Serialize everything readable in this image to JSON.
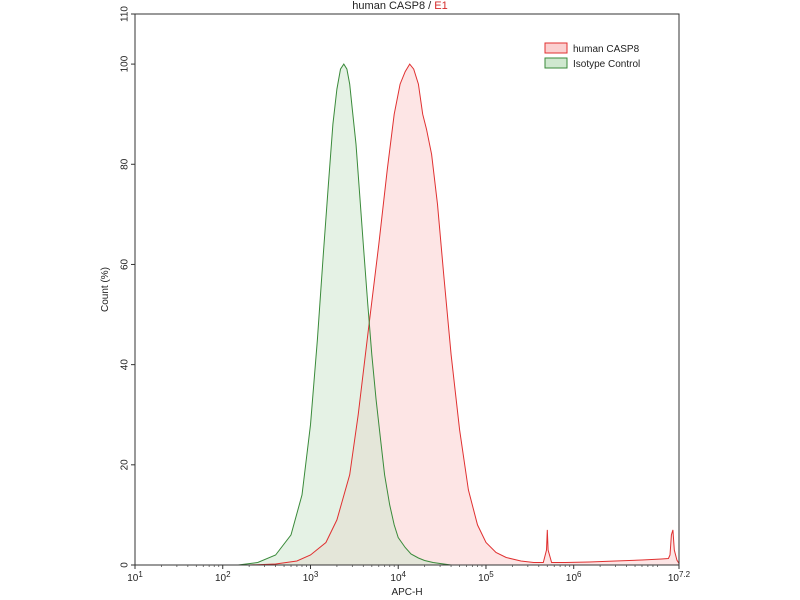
{
  "chart_data": {
    "type": "area",
    "title": "human CASP8",
    "title_separator": " / ",
    "gate": "E1",
    "xlabel": "APC-H",
    "ylabel": "Count (%)",
    "x_scale": "log",
    "xlim": [
      10,
      15848932
    ],
    "ylim": [
      0,
      110
    ],
    "y_ticks": [
      0,
      20,
      40,
      60,
      80,
      100,
      110
    ],
    "x_ticks": [
      {
        "base": "10",
        "exp": "1",
        "value": 10
      },
      {
        "base": "10",
        "exp": "2",
        "value": 100
      },
      {
        "base": "10",
        "exp": "3",
        "value": 1000
      },
      {
        "base": "10",
        "exp": "4",
        "value": 10000
      },
      {
        "base": "10",
        "exp": "5",
        "value": 100000
      },
      {
        "base": "10",
        "exp": "6",
        "value": 1000000
      },
      {
        "base": "10",
        "exp": "7.2",
        "value": 15848932
      }
    ],
    "grid": false,
    "legend_position": "top-right",
    "series": [
      {
        "name": "human CASP8",
        "line_color": "#e03030",
        "fill_color": "#fbd0d0",
        "x": [
          200,
          400,
          700,
          1000,
          1500,
          2000,
          2800,
          3500,
          4500,
          6000,
          7500,
          9000,
          10500,
          12000,
          13500,
          15000,
          17000,
          19000,
          21000,
          24000,
          28000,
          33000,
          40000,
          50000,
          63000,
          80000,
          100000,
          130000,
          170000,
          250000,
          350000,
          450000,
          490000,
          500000,
          510000,
          560000,
          800000,
          1500000,
          3000000,
          6000000,
          10000000,
          12000000,
          12500000,
          13000000,
          13500000,
          14000000,
          15000000,
          15848932
        ],
        "y": [
          0,
          0.2,
          0.8,
          2,
          4.5,
          9,
          18,
          30,
          46,
          64,
          79,
          90,
          96,
          98.5,
          100,
          99,
          96,
          90,
          87,
          82,
          72,
          58,
          42,
          27,
          15,
          8,
          4.5,
          2.5,
          1.5,
          0.8,
          0.5,
          0.5,
          3,
          7,
          3,
          0.5,
          0.5,
          0.6,
          0.8,
          1,
          1.2,
          1.3,
          2,
          6,
          7,
          3,
          1,
          0.3
        ]
      },
      {
        "name": "Isotype Control",
        "line_color": "#3a8a3a",
        "fill_color": "#cfe8cf",
        "x": [
          150,
          250,
          400,
          600,
          800,
          1000,
          1200,
          1400,
          1600,
          1800,
          2000,
          2200,
          2400,
          2600,
          2800,
          3000,
          3300,
          3600,
          4000,
          4500,
          5000,
          5600,
          6300,
          7000,
          8000,
          9000,
          10000,
          12000,
          14000,
          17000,
          20000,
          25000,
          30000,
          40000
        ],
        "y": [
          0,
          0.5,
          2,
          6,
          14,
          28,
          45,
          62,
          76,
          88,
          95,
          99,
          100,
          99,
          96,
          91,
          84,
          75,
          64,
          52,
          42,
          33,
          25,
          18,
          12,
          8,
          5.5,
          3.5,
          2.2,
          1.4,
          0.9,
          0.5,
          0.3,
          0
        ]
      }
    ]
  }
}
